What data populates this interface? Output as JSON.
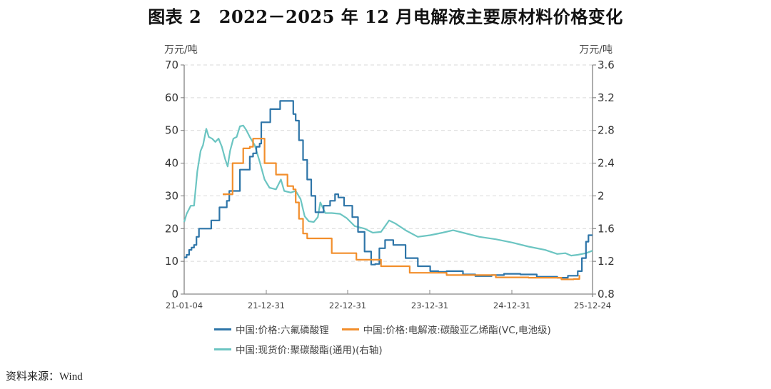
{
  "title": "图表 2　2022－2025 年 12 月电解液主要原材料价格变化",
  "source": "资料来源：Wind",
  "chart_data": {
    "type": "line",
    "title": "图表 2　2022－2025 年 12 月电解液主要原材料价格变化",
    "left_axis": {
      "label": "万元/吨",
      "ylim": [
        0,
        70
      ],
      "ticks": [
        0,
        10,
        20,
        30,
        40,
        50,
        60,
        70
      ]
    },
    "right_axis": {
      "label": "万元/吨",
      "ylim": [
        0.8,
        3.6
      ],
      "ticks": [
        0.8,
        1.2,
        1.6,
        2,
        2.4,
        2.8,
        3.2,
        3.6
      ]
    },
    "x_ticks": [
      "21-01-04",
      "21-12-31",
      "22-12-31",
      "23-12-31",
      "24-12-31",
      "25-12-24"
    ],
    "x_range": [
      "2021-01-04",
      "2025-12-24"
    ],
    "grid": "horizontal dashed",
    "legend_position": "bottom",
    "series": [
      {
        "name": "中国:价格:六氟磷酸锂",
        "axis": "left",
        "color": "#2e75a8",
        "step": true,
        "points": [
          [
            2021.0,
            11.2
          ],
          [
            2021.03,
            12
          ],
          [
            2021.06,
            13.5
          ],
          [
            2021.09,
            14.2
          ],
          [
            2021.12,
            15
          ],
          [
            2021.15,
            17.5
          ],
          [
            2021.18,
            20
          ],
          [
            2021.3,
            20
          ],
          [
            2021.33,
            22.5
          ],
          [
            2021.4,
            22.5
          ],
          [
            2021.43,
            26.5
          ],
          [
            2021.5,
            26.5
          ],
          [
            2021.52,
            28.5
          ],
          [
            2021.55,
            31.5
          ],
          [
            2021.65,
            31.5
          ],
          [
            2021.68,
            38
          ],
          [
            2021.77,
            38
          ],
          [
            2021.8,
            42
          ],
          [
            2021.84,
            43
          ],
          [
            2021.88,
            45
          ],
          [
            2021.92,
            46
          ],
          [
            2021.94,
            52.5
          ],
          [
            2022.02,
            52.5
          ],
          [
            2022.05,
            56.5
          ],
          [
            2022.14,
            56.5
          ],
          [
            2022.17,
            59
          ],
          [
            2022.3,
            59
          ],
          [
            2022.33,
            55
          ],
          [
            2022.36,
            53
          ],
          [
            2022.4,
            47
          ],
          [
            2022.45,
            41
          ],
          [
            2022.5,
            35
          ],
          [
            2022.55,
            30
          ],
          [
            2022.6,
            25
          ],
          [
            2022.66,
            25
          ],
          [
            2022.7,
            27
          ],
          [
            2022.78,
            28.5
          ],
          [
            2022.84,
            30.5
          ],
          [
            2022.88,
            29.5
          ],
          [
            2022.95,
            27
          ],
          [
            2023.05,
            23.5
          ],
          [
            2023.12,
            19
          ],
          [
            2023.2,
            13
          ],
          [
            2023.28,
            9
          ],
          [
            2023.33,
            9.2
          ],
          [
            2023.38,
            14
          ],
          [
            2023.45,
            16.5
          ],
          [
            2023.55,
            15
          ],
          [
            2023.7,
            11
          ],
          [
            2023.85,
            8.5
          ],
          [
            2024.0,
            7
          ],
          [
            2024.1,
            6.8
          ],
          [
            2024.2,
            7
          ],
          [
            2024.4,
            6
          ],
          [
            2024.55,
            5.5
          ],
          [
            2024.75,
            5.8
          ],
          [
            2024.9,
            6.2
          ],
          [
            2025.1,
            6
          ],
          [
            2025.3,
            5.3
          ],
          [
            2025.55,
            5
          ],
          [
            2025.68,
            5.6
          ],
          [
            2025.8,
            7
          ],
          [
            2025.85,
            11
          ],
          [
            2025.9,
            16
          ],
          [
            2025.93,
            18
          ],
          [
            2025.98,
            18
          ]
        ]
      },
      {
        "name": "中国:价格:电解液:碳酸亚乙烯酯(VC,电池级)",
        "axis": "left",
        "color": "#f28e2b",
        "step": true,
        "points": [
          [
            2021.47,
            30.5
          ],
          [
            2021.57,
            30.5
          ],
          [
            2021.59,
            40
          ],
          [
            2021.7,
            40
          ],
          [
            2021.72,
            44.5
          ],
          [
            2021.8,
            45
          ],
          [
            2021.84,
            47.5
          ],
          [
            2021.96,
            47.5
          ],
          [
            2021.98,
            40
          ],
          [
            2022.1,
            40
          ],
          [
            2022.12,
            36.5
          ],
          [
            2022.24,
            36.5
          ],
          [
            2022.26,
            33
          ],
          [
            2022.33,
            32
          ],
          [
            2022.36,
            28
          ],
          [
            2022.4,
            23
          ],
          [
            2022.45,
            18.5
          ],
          [
            2022.5,
            17
          ],
          [
            2022.8,
            12.5
          ],
          [
            2023.1,
            10.5
          ],
          [
            2023.4,
            8.5
          ],
          [
            2023.75,
            6.5
          ],
          [
            2024.2,
            5.8
          ],
          [
            2024.8,
            5.1
          ],
          [
            2025.2,
            5
          ],
          [
            2025.6,
            4.5
          ],
          [
            2025.75,
            4.6
          ],
          [
            2025.82,
            5.8
          ]
        ]
      },
      {
        "name": "中国:现货价:聚碳酸酯(通用)(右轴)",
        "axis": "right",
        "color": "#6cc5c2",
        "step": false,
        "points": [
          [
            2021.0,
            1.68
          ],
          [
            2021.03,
            1.78
          ],
          [
            2021.08,
            1.88
          ],
          [
            2021.12,
            1.88
          ],
          [
            2021.16,
            2.3
          ],
          [
            2021.2,
            2.55
          ],
          [
            2021.23,
            2.62
          ],
          [
            2021.27,
            2.82
          ],
          [
            2021.3,
            2.72
          ],
          [
            2021.34,
            2.7
          ],
          [
            2021.38,
            2.66
          ],
          [
            2021.42,
            2.7
          ],
          [
            2021.46,
            2.6
          ],
          [
            2021.5,
            2.45
          ],
          [
            2021.53,
            2.36
          ],
          [
            2021.56,
            2.55
          ],
          [
            2021.6,
            2.7
          ],
          [
            2021.64,
            2.72
          ],
          [
            2021.68,
            2.85
          ],
          [
            2021.72,
            2.86
          ],
          [
            2021.76,
            2.8
          ],
          [
            2021.8,
            2.72
          ],
          [
            2021.86,
            2.62
          ],
          [
            2021.92,
            2.42
          ],
          [
            2021.98,
            2.2
          ],
          [
            2022.04,
            2.1
          ],
          [
            2022.12,
            2.08
          ],
          [
            2022.18,
            2.2
          ],
          [
            2022.22,
            2.06
          ],
          [
            2022.3,
            2.04
          ],
          [
            2022.36,
            2.06
          ],
          [
            2022.42,
            1.96
          ],
          [
            2022.47,
            1.75
          ],
          [
            2022.52,
            1.69
          ],
          [
            2022.58,
            1.68
          ],
          [
            2022.63,
            1.74
          ],
          [
            2022.66,
            1.92
          ],
          [
            2022.72,
            1.79
          ],
          [
            2022.8,
            1.79
          ],
          [
            2022.9,
            1.78
          ],
          [
            2022.98,
            1.73
          ],
          [
            2023.08,
            1.63
          ],
          [
            2023.2,
            1.6
          ],
          [
            2023.3,
            1.55
          ],
          [
            2023.4,
            1.56
          ],
          [
            2023.5,
            1.7
          ],
          [
            2023.58,
            1.66
          ],
          [
            2023.7,
            1.58
          ],
          [
            2023.85,
            1.5
          ],
          [
            2024.0,
            1.52
          ],
          [
            2024.15,
            1.55
          ],
          [
            2024.28,
            1.58
          ],
          [
            2024.4,
            1.55
          ],
          [
            2024.6,
            1.5
          ],
          [
            2024.8,
            1.47
          ],
          [
            2025.0,
            1.43
          ],
          [
            2025.2,
            1.38
          ],
          [
            2025.4,
            1.34
          ],
          [
            2025.55,
            1.29
          ],
          [
            2025.65,
            1.3
          ],
          [
            2025.72,
            1.27
          ],
          [
            2025.8,
            1.28
          ],
          [
            2025.9,
            1.3
          ],
          [
            2025.98,
            1.33
          ]
        ]
      }
    ]
  },
  "legend": {
    "items": [
      {
        "label": "中国:价格:六氟磷酸锂",
        "color": "#2e75a8"
      },
      {
        "label": "中国:价格:电解液:碳酸亚乙烯酯(VC,电池级)",
        "color": "#f28e2b"
      },
      {
        "label": "中国:现货价:聚碳酸酯(通用)(右轴)",
        "color": "#6cc5c2"
      }
    ]
  }
}
